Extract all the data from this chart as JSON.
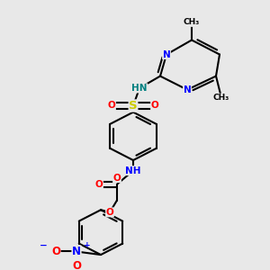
{
  "bg_color": "#e8e8e8",
  "bond_color": "#000000",
  "bond_width": 1.5,
  "atom_colors": {
    "C": "#000000",
    "N": "#0000ff",
    "O": "#ff0000",
    "S": "#cccc00",
    "H": "#008080",
    "charge": "#0000ff"
  },
  "font_size": 7.5,
  "fig_width": 3.0,
  "fig_height": 3.0,
  "dpi": 100,
  "xlim": [
    0,
    300
  ],
  "ylim": [
    0,
    300
  ]
}
